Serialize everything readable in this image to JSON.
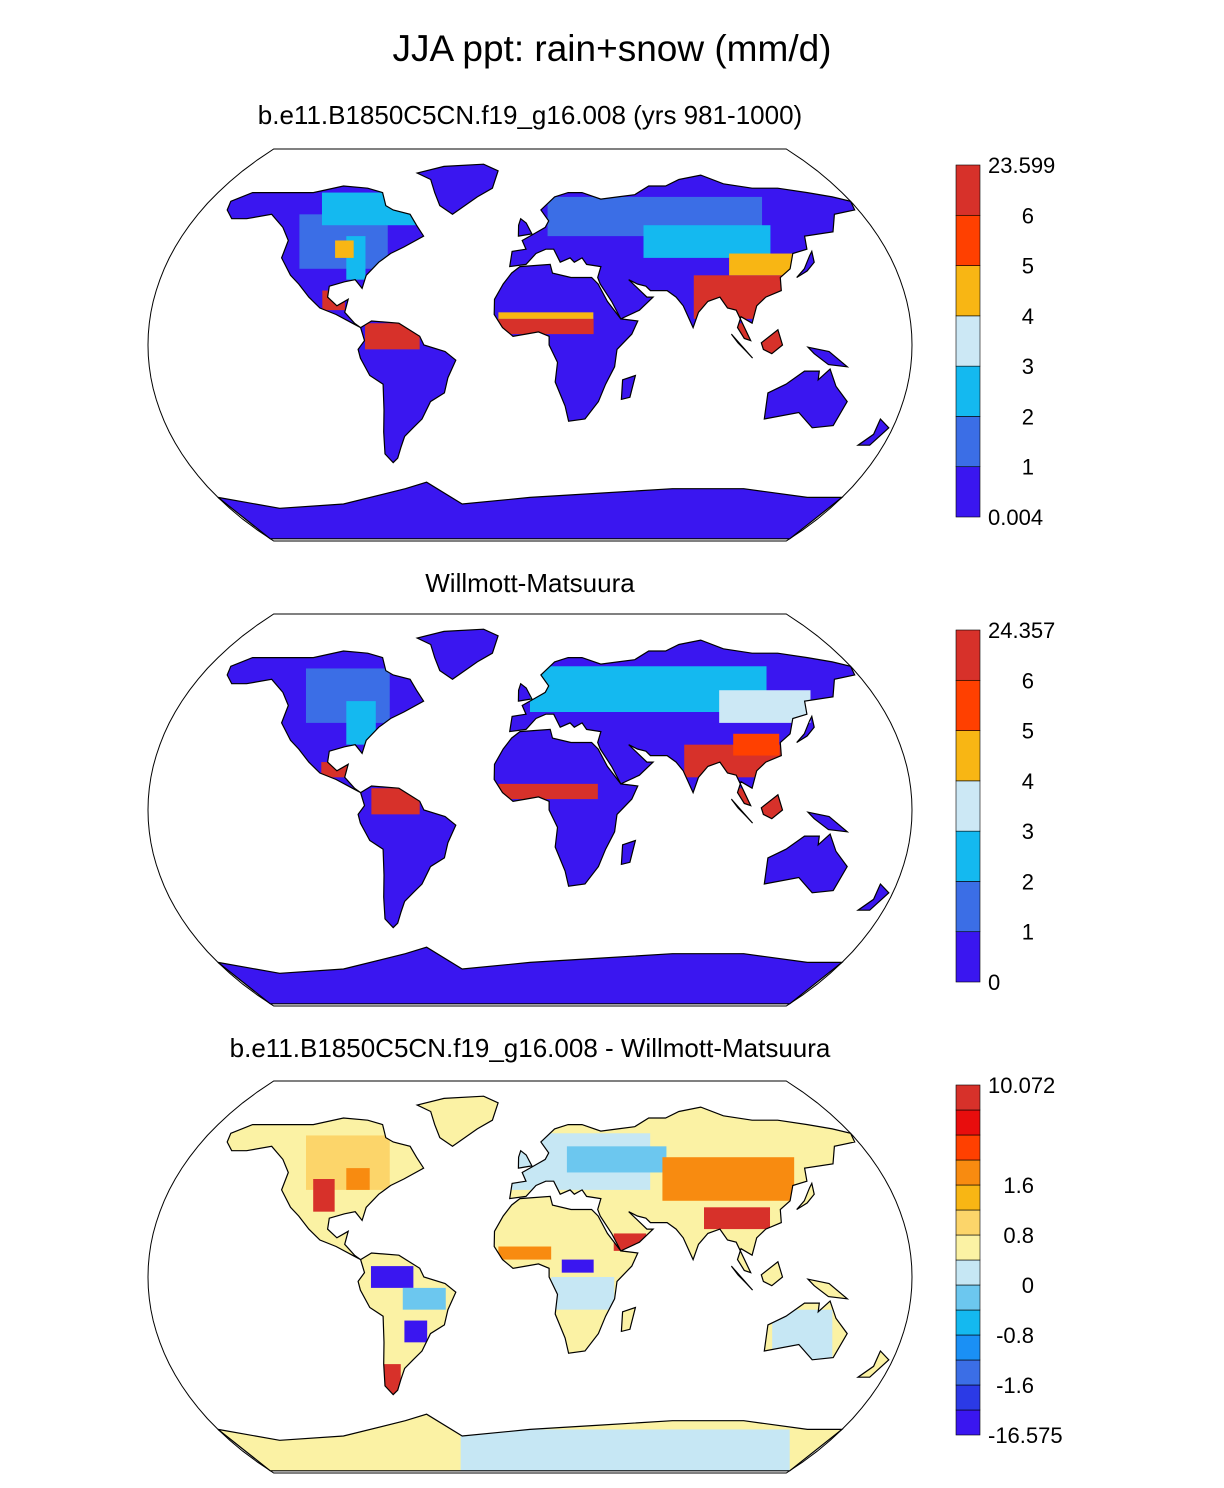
{
  "title": "JJA ppt: rain+snow (mm/d)",
  "panels": [
    {
      "id": "model",
      "subtitle": "b.e11.B1850C5CN.f19_g16.008 (yrs 981-1000)",
      "colorbar": {
        "colors": [
          "#3a16f0",
          "#3b6ee6",
          "#14b9f0",
          "#cce8f5",
          "#f8b614",
          "#ff4000",
          "#d7312a"
        ],
        "labels": [
          "0.004",
          "1",
          "2",
          "3",
          "4",
          "5",
          "6",
          "23.599"
        ]
      }
    },
    {
      "id": "obs",
      "subtitle": "Willmott-Matsuura",
      "colorbar": {
        "colors": [
          "#3a16f0",
          "#3b6ee6",
          "#14b9f0",
          "#cce8f5",
          "#f8b614",
          "#ff4000",
          "#d7312a"
        ],
        "labels": [
          "0",
          "1",
          "2",
          "3",
          "4",
          "5",
          "6",
          "24.357"
        ]
      }
    },
    {
      "id": "diff",
      "subtitle": "b.e11.B1850C5CN.f19_g16.008 - Willmott-Matsuura",
      "colorbar": {
        "colors": [
          "#3a16f0",
          "#2b3ae6",
          "#3b6ee6",
          "#1a90f5",
          "#14b9f0",
          "#6cc7ef",
          "#c6e7f4",
          "#fbf2a4",
          "#fcd56a",
          "#f8b614",
          "#f88b10",
          "#ff4000",
          "#e80d0d",
          "#d7312a"
        ],
        "labels": [
          "-16.575",
          "",
          "-1.6",
          "",
          "-0.8",
          "",
          "0",
          "",
          "0.8",
          "",
          "1.6",
          "",
          "",
          "",
          "10.072"
        ]
      }
    }
  ]
}
